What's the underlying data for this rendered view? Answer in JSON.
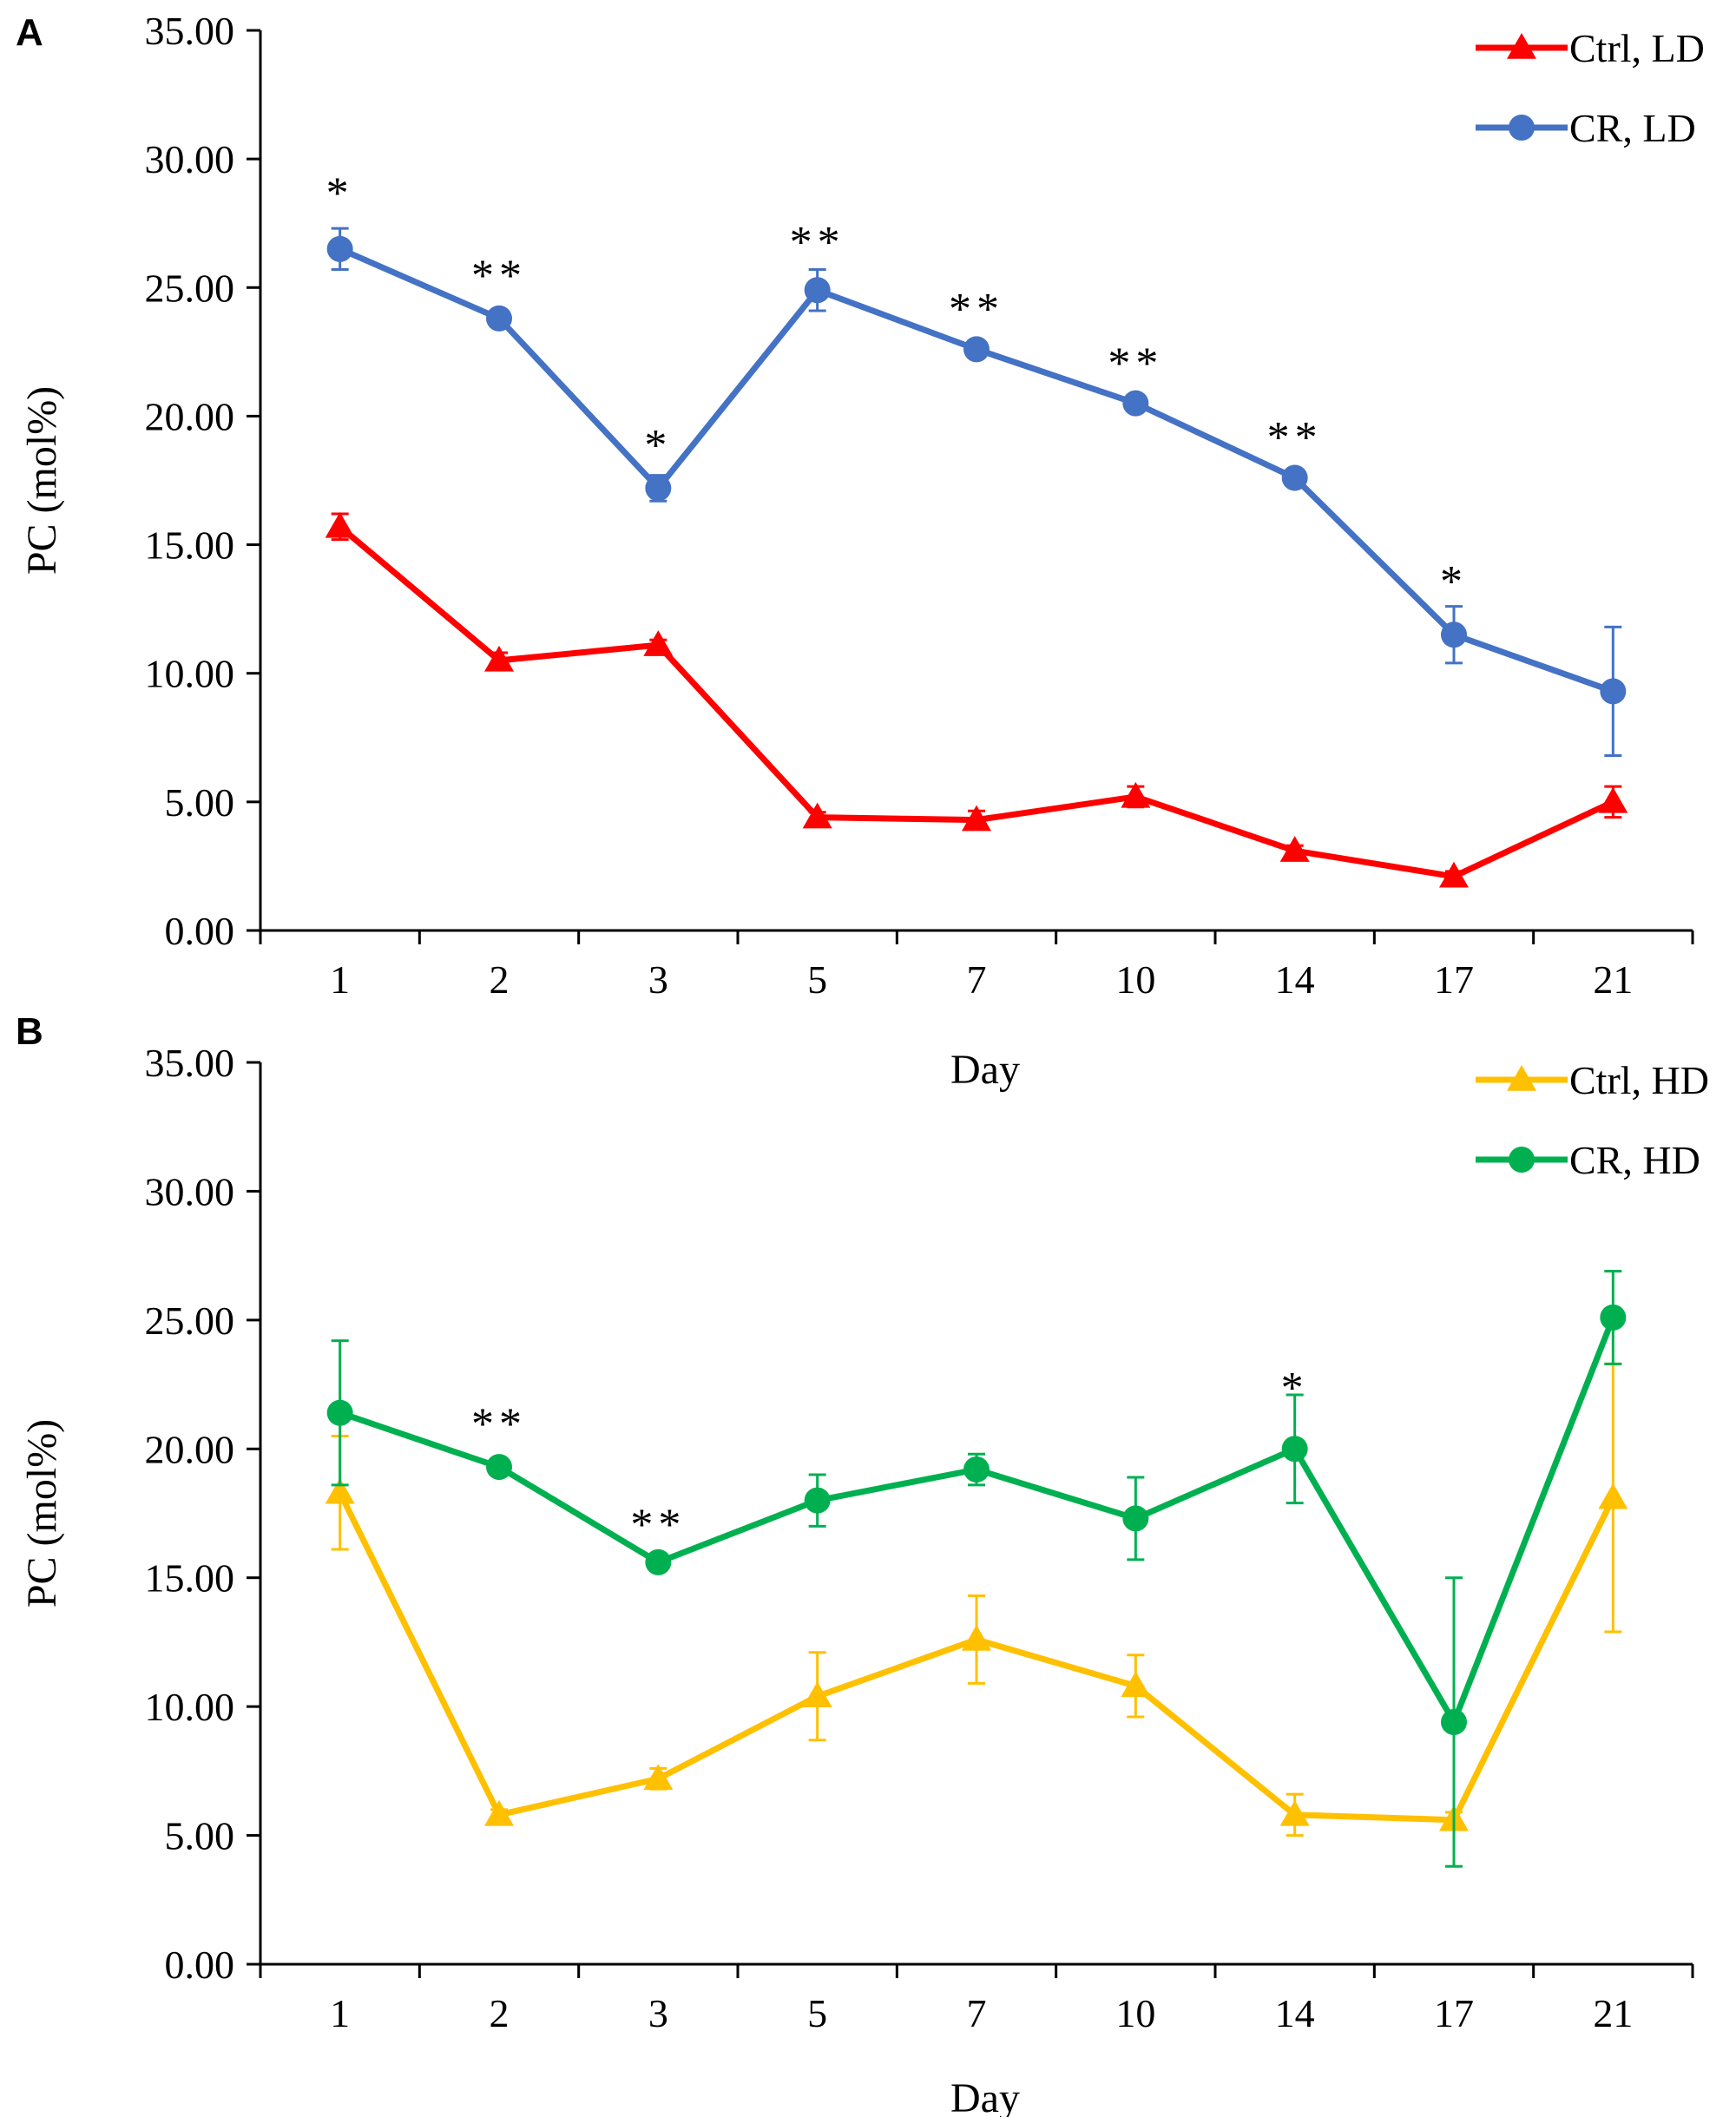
{
  "chart_data": [
    {
      "type": "line",
      "panel": "A",
      "categories": [
        "1",
        "2",
        "3",
        "5",
        "7",
        "10",
        "14",
        "17",
        "21"
      ],
      "xlabel": "Day",
      "ylabel": "PC (mol%)",
      "ylim": [
        0,
        35
      ],
      "yticks": [
        "0.00",
        "5.00",
        "10.00",
        "15.00",
        "20.00",
        "25.00",
        "30.00",
        "35.00"
      ],
      "grid": false,
      "legend": "top-right",
      "series": [
        {
          "name": "Ctrl, LD",
          "color": "#ff0000",
          "marker": "triangle",
          "values": [
            15.7,
            10.5,
            11.1,
            4.4,
            4.3,
            5.2,
            3.1,
            2.1,
            5.0
          ],
          "errors": [
            0.5,
            0.3,
            0.2,
            0.2,
            0.35,
            0.4,
            0.2,
            0.2,
            0.6
          ]
        },
        {
          "name": "CR, LD",
          "color": "#4472c4",
          "marker": "circle",
          "values": [
            26.5,
            23.8,
            17.2,
            24.9,
            22.6,
            20.5,
            17.6,
            11.5,
            9.3
          ],
          "errors": [
            0.8,
            0.2,
            0.5,
            0.8,
            0.2,
            0.3,
            0.2,
            1.1,
            2.5
          ]
        }
      ],
      "annotations": [
        {
          "category": "1",
          "text": "*",
          "value": 28.9
        },
        {
          "category": "2",
          "text": "**",
          "value": 25.7
        },
        {
          "category": "3",
          "text": "*",
          "value": 19.1
        },
        {
          "category": "5",
          "text": "**",
          "value": 27.0
        },
        {
          "category": "7",
          "text": "**",
          "value": 24.4
        },
        {
          "category": "10",
          "text": "**",
          "value": 22.3
        },
        {
          "category": "14",
          "text": "**",
          "value": 19.4
        },
        {
          "category": "17",
          "text": "*",
          "value": 13.8
        }
      ]
    },
    {
      "type": "line",
      "panel": "B",
      "categories": [
        "1",
        "2",
        "3",
        "5",
        "7",
        "10",
        "14",
        "17",
        "21"
      ],
      "xlabel": "Day",
      "ylabel": "PC (mol%)",
      "ylim": [
        0,
        35
      ],
      "yticks": [
        "0.00",
        "5.00",
        "10.00",
        "15.00",
        "20.00",
        "25.00",
        "30.00",
        "35.00"
      ],
      "grid": false,
      "legend": "top-right",
      "series": [
        {
          "name": "Ctrl, HD",
          "color": "#ffc000",
          "marker": "triangle",
          "values": [
            18.3,
            5.8,
            7.2,
            10.4,
            12.6,
            10.8,
            5.8,
            5.6,
            18.1
          ],
          "errors": [
            2.2,
            0.2,
            0.4,
            1.7,
            1.7,
            1.2,
            0.8,
            0.3,
            5.2
          ]
        },
        {
          "name": "CR, HD",
          "color": "#00b050",
          "marker": "circle",
          "values": [
            21.4,
            19.3,
            15.6,
            18.0,
            19.2,
            17.3,
            20.0,
            9.4,
            25.1
          ],
          "errors": [
            2.8,
            0.2,
            0.3,
            1.0,
            0.6,
            1.6,
            2.1,
            5.6,
            1.8
          ]
        }
      ],
      "annotations": [
        {
          "category": "2",
          "text": "**",
          "value": 21.2
        },
        {
          "category": "3",
          "text": "**",
          "value": 17.3
        },
        {
          "category": "14",
          "text": "*",
          "value": 22.6
        }
      ]
    }
  ]
}
